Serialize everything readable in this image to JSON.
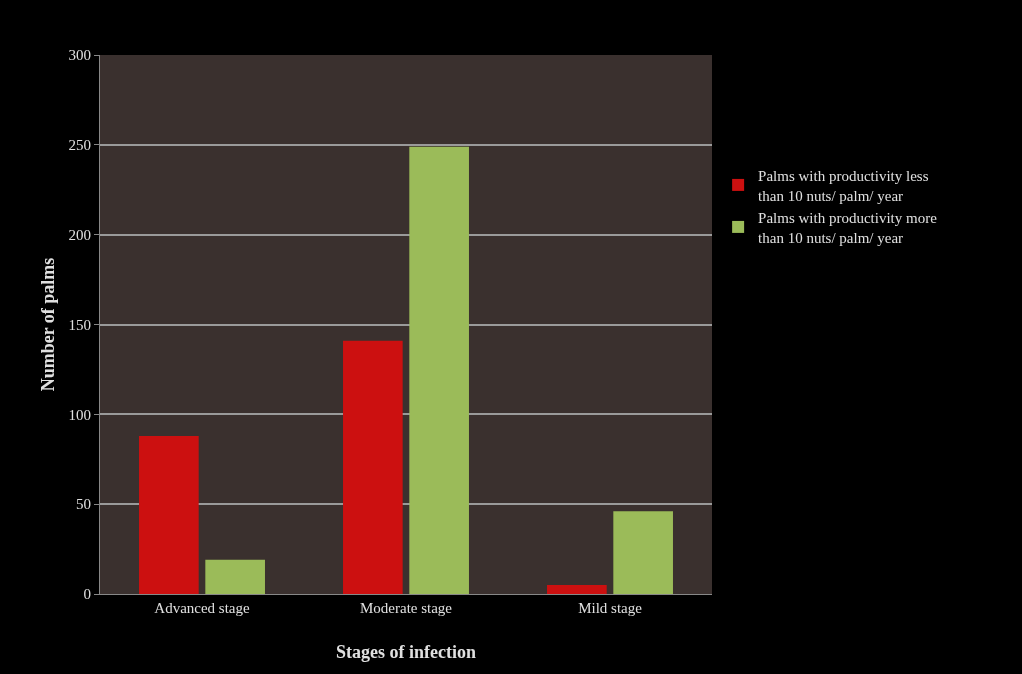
{
  "chart_data": {
    "type": "bar",
    "xlabel": "Stages of infection",
    "ylabel": "Number of palms",
    "categories": [
      "Advanced stage",
      "Moderate stage",
      "Mild stage"
    ],
    "series": [
      {
        "name": "Palms with productivity less than 10 nuts/ palm/ year",
        "color": "#cc1010",
        "values": [
          88,
          141,
          5
        ]
      },
      {
        "name": "Palms with productivity more than 10 nuts/ palm/ year",
        "color": "#9bbb59",
        "values": [
          19,
          249,
          46
        ]
      }
    ],
    "ylim": [
      0,
      300
    ],
    "yticks": [
      0,
      50,
      100,
      150,
      200,
      250,
      300
    ],
    "grid": "y",
    "legend": "right"
  }
}
